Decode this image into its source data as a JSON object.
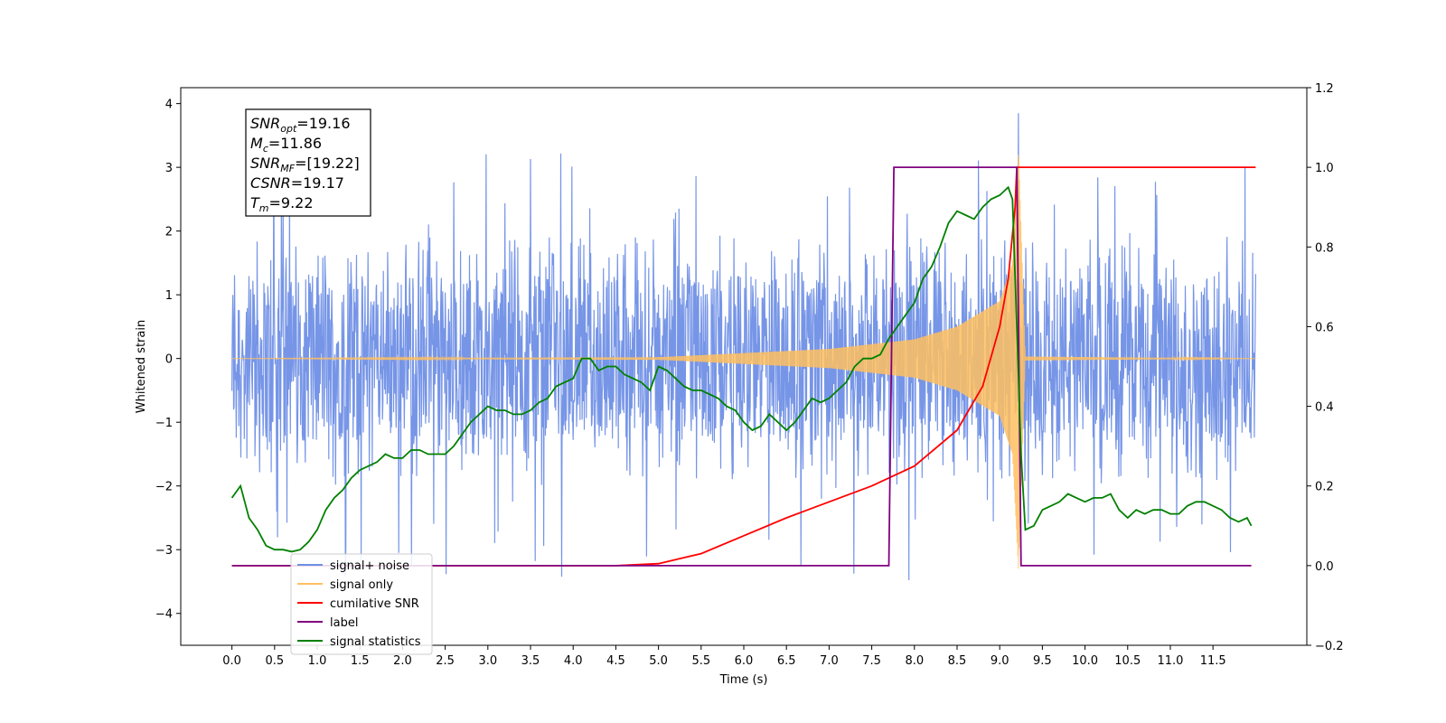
{
  "chart_data": {
    "type": "line",
    "title": "",
    "xlabel": "Time (s)",
    "ylabel": "Whitened strain",
    "y2label": "",
    "xlim": [
      -0.6,
      12.6
    ],
    "ylim": [
      -4.5,
      4.25
    ],
    "y2lim": [
      -0.2,
      1.2
    ],
    "x_ticks": [
      0.0,
      0.5,
      1.0,
      1.5,
      2.0,
      2.5,
      3.0,
      3.5,
      4.0,
      4.5,
      5.0,
      5.5,
      6.0,
      6.5,
      7.0,
      7.5,
      8.0,
      8.5,
      9.0,
      9.5,
      10.0,
      10.5,
      11.0,
      11.5
    ],
    "x_tick_labels": [
      "0.0",
      "0.5",
      "1.0",
      "1.5",
      "2.0",
      "2.5",
      "3.0",
      "3.5",
      "4.0",
      "4.5",
      "5.0",
      "5.5",
      "6.0",
      "6.5",
      "7.0",
      "7.5",
      "8.0",
      "8.5",
      "9.0",
      "9.5",
      "10.0",
      "10.5",
      "11.0",
      "11.5"
    ],
    "y_ticks": [
      -4,
      -3,
      -2,
      -1,
      0,
      1,
      2,
      3,
      4
    ],
    "y_tick_labels": [
      "−4",
      "−3",
      "−2",
      "−1",
      "0",
      "1",
      "2",
      "3",
      "4"
    ],
    "y2_ticks": [
      -0.2,
      0.0,
      0.2,
      0.4,
      0.6,
      0.8,
      1.0,
      1.2
    ],
    "y2_tick_labels": [
      "−0.2",
      "0.0",
      "0.2",
      "0.4",
      "0.6",
      "0.8",
      "1.0",
      "1.2"
    ],
    "grid": false,
    "legend_position": "lower-left",
    "legend": [
      {
        "label": "signal+ noise",
        "color": "#6f8fe6"
      },
      {
        "label": "signal only",
        "color": "#ffbf5f"
      },
      {
        "label": "cumilative SNR",
        "color": "#ff0000"
      },
      {
        "label": "label",
        "color": "#800080"
      },
      {
        "label": "signal statistics",
        "color": "#008000"
      }
    ],
    "annotations": [
      {
        "symbol": "SNR",
        "sub": "opt",
        "value": "=19.16"
      },
      {
        "symbol": "M",
        "sub": "c",
        "value": "=11.86"
      },
      {
        "symbol": "SNR",
        "sub": "MF",
        "value": "=[19.22]"
      },
      {
        "symbol": "CSNR",
        "sub": "",
        "value": "=19.17"
      },
      {
        "symbol": "T",
        "sub": "m",
        "value": "=9.22"
      }
    ],
    "series": [
      {
        "name": "signal+ noise",
        "axis": "left",
        "color": "#6f8fe6",
        "kind": "noise",
        "x_start": 0.0,
        "x_end": 12.0,
        "core_range": [
          -1.3,
          1.3
        ],
        "spike_range": [
          -3.5,
          3.3
        ],
        "peak_x": 9.22,
        "peak_y": 3.85
      },
      {
        "name": "signal only",
        "axis": "left",
        "color": "#ffbf5f",
        "kind": "chirp",
        "x_start": 0.0,
        "x_end": 12.0,
        "merger_x": 9.22,
        "envelope": {
          "x": [
            0.0,
            5.0,
            7.0,
            8.0,
            8.5,
            9.0,
            9.15,
            9.22,
            9.3,
            12.0
          ],
          "y": [
            0.0,
            0.02,
            0.15,
            0.3,
            0.5,
            0.9,
            1.5,
            3.3,
            0.03,
            0.0
          ]
        }
      },
      {
        "name": "cumilative SNR",
        "axis": "right",
        "color": "#ff0000",
        "x": [
          0.0,
          4.5,
          5.0,
          5.5,
          6.0,
          6.5,
          7.0,
          7.5,
          8.0,
          8.5,
          8.8,
          9.0,
          9.1,
          9.18,
          9.2,
          12.0
        ],
        "y": [
          0.0,
          0.0,
          0.005,
          0.03,
          0.075,
          0.12,
          0.16,
          0.2,
          0.25,
          0.34,
          0.45,
          0.6,
          0.72,
          0.9,
          1.0,
          1.0
        ]
      },
      {
        "name": "label",
        "axis": "right",
        "color": "#800080",
        "x": [
          0.0,
          7.7,
          7.76,
          9.2,
          9.25,
          11.95
        ],
        "y": [
          0.0,
          0.0,
          1.0,
          1.0,
          0.0,
          0.0
        ]
      },
      {
        "name": "signal statistics",
        "axis": "right",
        "color": "#008000",
        "x": [
          0.0,
          0.1,
          0.15,
          0.2,
          0.3,
          0.4,
          0.5,
          0.6,
          0.7,
          0.8,
          0.9,
          1.0,
          1.1,
          1.2,
          1.3,
          1.4,
          1.5,
          1.6,
          1.7,
          1.8,
          1.9,
          2.0,
          2.1,
          2.2,
          2.3,
          2.4,
          2.5,
          2.6,
          2.7,
          2.8,
          2.9,
          3.0,
          3.1,
          3.2,
          3.3,
          3.4,
          3.5,
          3.6,
          3.7,
          3.8,
          3.9,
          4.0,
          4.1,
          4.2,
          4.3,
          4.4,
          4.5,
          4.6,
          4.7,
          4.8,
          4.9,
          5.0,
          5.1,
          5.2,
          5.3,
          5.4,
          5.5,
          5.6,
          5.7,
          5.8,
          5.9,
          6.0,
          6.1,
          6.2,
          6.3,
          6.4,
          6.5,
          6.6,
          6.7,
          6.8,
          6.9,
          7.0,
          7.1,
          7.2,
          7.3,
          7.4,
          7.5,
          7.6,
          7.7,
          7.8,
          7.9,
          8.0,
          8.1,
          8.2,
          8.3,
          8.4,
          8.5,
          8.6,
          8.7,
          8.8,
          8.9,
          9.0,
          9.1,
          9.15,
          9.2,
          9.25,
          9.3,
          9.4,
          9.5,
          9.6,
          9.7,
          9.8,
          9.9,
          10.0,
          10.1,
          10.2,
          10.3,
          10.4,
          10.5,
          10.6,
          10.7,
          10.8,
          10.9,
          11.0,
          11.1,
          11.2,
          11.3,
          11.4,
          11.5,
          11.6,
          11.7,
          11.8,
          11.9,
          11.95
        ],
        "y": [
          0.17,
          0.2,
          0.16,
          0.12,
          0.09,
          0.05,
          0.04,
          0.04,
          0.035,
          0.04,
          0.06,
          0.09,
          0.14,
          0.17,
          0.19,
          0.22,
          0.24,
          0.25,
          0.26,
          0.28,
          0.27,
          0.27,
          0.29,
          0.29,
          0.28,
          0.28,
          0.28,
          0.3,
          0.33,
          0.36,
          0.38,
          0.4,
          0.39,
          0.39,
          0.38,
          0.38,
          0.39,
          0.41,
          0.42,
          0.45,
          0.46,
          0.47,
          0.52,
          0.52,
          0.49,
          0.5,
          0.5,
          0.48,
          0.47,
          0.46,
          0.44,
          0.5,
          0.49,
          0.47,
          0.45,
          0.44,
          0.44,
          0.43,
          0.42,
          0.4,
          0.39,
          0.36,
          0.34,
          0.35,
          0.38,
          0.36,
          0.34,
          0.36,
          0.39,
          0.42,
          0.41,
          0.42,
          0.44,
          0.46,
          0.5,
          0.52,
          0.52,
          0.53,
          0.57,
          0.6,
          0.63,
          0.66,
          0.72,
          0.75,
          0.8,
          0.86,
          0.89,
          0.88,
          0.87,
          0.9,
          0.92,
          0.93,
          0.95,
          0.92,
          0.6,
          0.28,
          0.09,
          0.1,
          0.14,
          0.15,
          0.16,
          0.18,
          0.17,
          0.16,
          0.17,
          0.17,
          0.18,
          0.14,
          0.12,
          0.14,
          0.13,
          0.14,
          0.14,
          0.13,
          0.13,
          0.15,
          0.16,
          0.16,
          0.15,
          0.14,
          0.12,
          0.11,
          0.12,
          0.1
        ]
      }
    ]
  }
}
